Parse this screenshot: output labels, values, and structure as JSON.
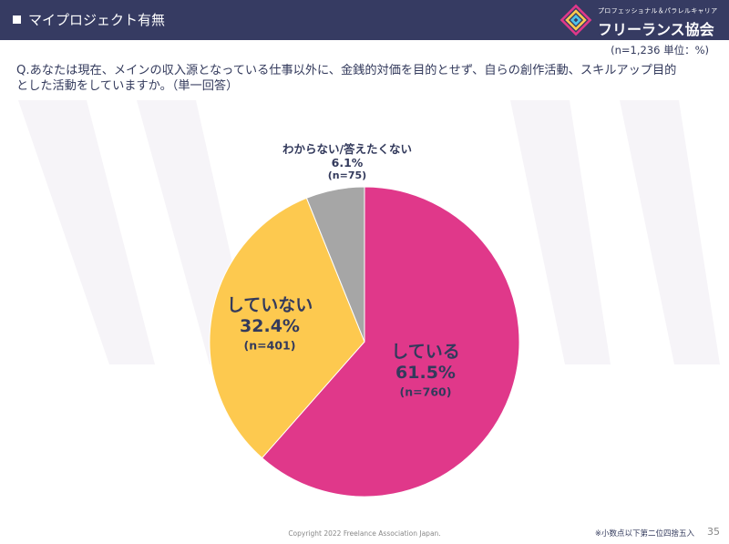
{
  "header": {
    "title": "マイプロジェクト有無",
    "logo_sub": "プロフェッショナル＆パラレルキャリア",
    "logo_main": "フリーランス協会"
  },
  "note_top": "(n=1,236 単位：%)",
  "question": {
    "line1": "Q.あなたは現在、メインの収入源となっている仕事以外に、金銭的対価を目的とせず、自らの創作活動、スキルアップ目的",
    "line2": "とした活動をしていますか。（単一回答）"
  },
  "chart_data": {
    "type": "pie",
    "slices": [
      {
        "label": "している",
        "value": 61.5,
        "value_text": "61.5%",
        "n_text": "(n=760)",
        "color": "#e0388a"
      },
      {
        "label": "していない",
        "value": 32.4,
        "value_text": "32.4%",
        "n_text": "(n=401)",
        "color": "#fdc94f"
      },
      {
        "label": "わからない/答えたくない",
        "value": 6.1,
        "value_text": "6.1%",
        "n_text": "(n=75)",
        "color": "#a6a6a6"
      }
    ]
  },
  "footer": {
    "copyright": "Copyright 2022 Freelance Association Japan.",
    "rounding_note": "※小数点以下第二位四捨五入",
    "page": "35"
  },
  "colors": {
    "header_bg": "#363b62",
    "text": "#333a5c"
  }
}
